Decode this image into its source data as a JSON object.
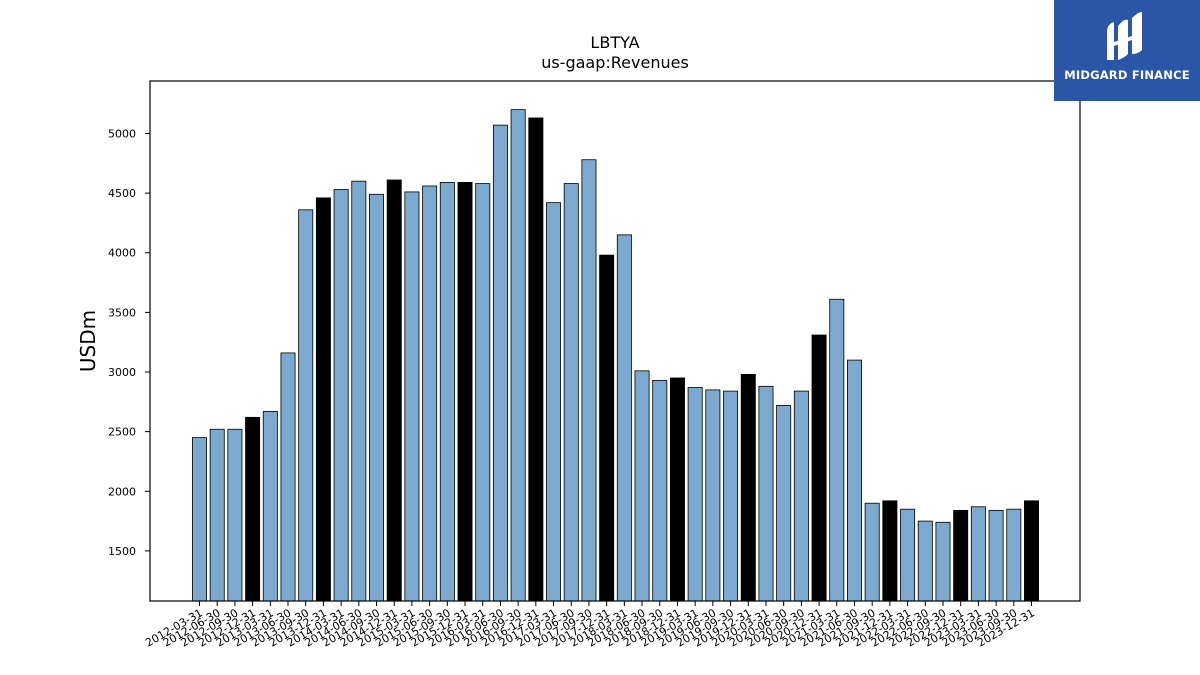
{
  "logo": {
    "brand": "MIDGARD FINANCE"
  },
  "colors": {
    "bar": "#7ba9d0",
    "highlight": "#000000",
    "edge": "#000000",
    "logo_bg": "#2b56a8"
  },
  "chart_data": {
    "type": "bar",
    "title": "LBTYA",
    "subtitle": "us-gaap:Revenues",
    "xlabel": "",
    "ylabel": "USDm",
    "ylim": [
      1080,
      5440
    ],
    "yticks": [
      1500,
      2000,
      2500,
      3000,
      3500,
      4000,
      4500,
      5000
    ],
    "grid": false,
    "categories": [
      "2012-03-31",
      "2012-06-30",
      "2012-09-30",
      "2012-12-31",
      "2013-03-31",
      "2013-06-30",
      "2013-09-30",
      "2013-12-31",
      "2014-03-31",
      "2014-06-30",
      "2014-09-30",
      "2014-12-31",
      "2015-03-31",
      "2015-06-30",
      "2015-09-30",
      "2015-12-31",
      "2016-03-31",
      "2016-06-30",
      "2016-09-30",
      "2016-12-31",
      "2017-03-31",
      "2017-06-30",
      "2017-09-30",
      "2017-12-31",
      "2018-03-31",
      "2018-06-30",
      "2018-09-30",
      "2018-12-31",
      "2019-03-31",
      "2019-06-30",
      "2019-09-30",
      "2019-12-31",
      "2020-03-31",
      "2020-06-30",
      "2020-09-30",
      "2020-12-31",
      "2021-03-31",
      "2021-06-30",
      "2021-09-30",
      "2021-12-31",
      "2022-03-31",
      "2022-06-30",
      "2022-09-30",
      "2022-12-31",
      "2023-03-31",
      "2023-06-30",
      "2023-09-30",
      "2023-12-31"
    ],
    "values": [
      2450,
      2520,
      2520,
      2620,
      2670,
      3160,
      4360,
      4460,
      4530,
      4600,
      4490,
      4610,
      4510,
      4560,
      4590,
      4590,
      4580,
      5070,
      5200,
      5130,
      4420,
      4580,
      4780,
      3980,
      4150,
      3010,
      2930,
      2950,
      2870,
      2850,
      2840,
      2980,
      2880,
      2720,
      2840,
      3310,
      3610,
      3100,
      1900,
      1920,
      1850,
      1750,
      1740,
      1840,
      1870,
      1840,
      1850,
      1920
    ],
    "highlight": [
      false,
      false,
      false,
      true,
      false,
      false,
      false,
      true,
      false,
      false,
      false,
      true,
      false,
      false,
      false,
      true,
      false,
      false,
      false,
      true,
      false,
      false,
      false,
      true,
      false,
      false,
      false,
      true,
      false,
      false,
      false,
      true,
      false,
      false,
      false,
      true,
      false,
      false,
      false,
      true,
      false,
      false,
      false,
      true,
      false,
      false,
      false,
      true
    ]
  }
}
